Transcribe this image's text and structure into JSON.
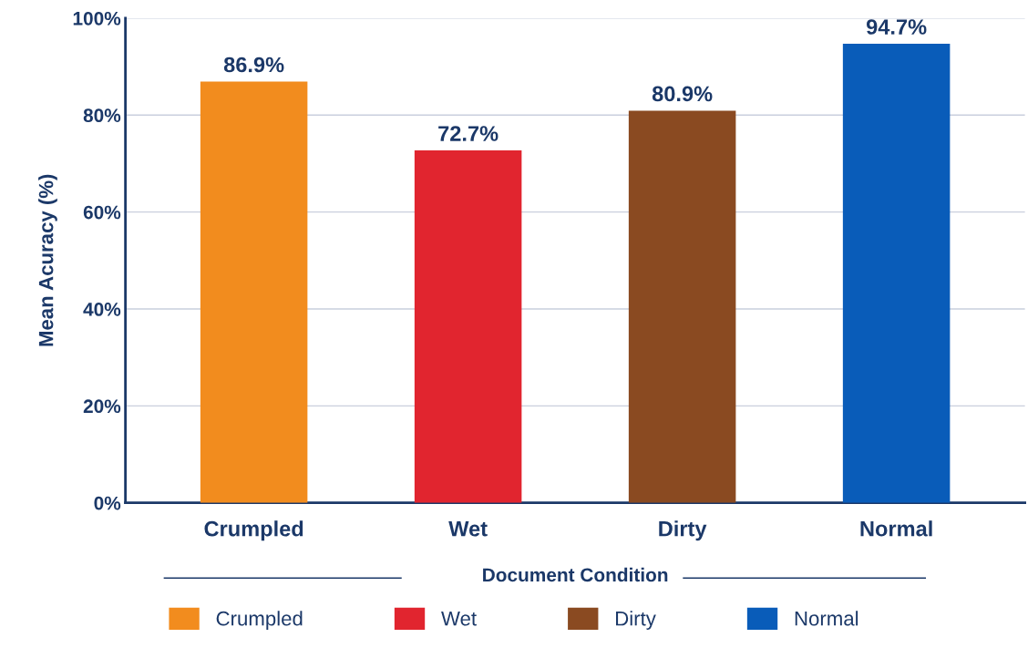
{
  "chart_data": {
    "type": "bar",
    "categories": [
      "Crumpled",
      "Wet",
      "Dirty",
      "Normal"
    ],
    "series": [
      {
        "name": "Crumpled",
        "color": "#f28c1e",
        "values": [
          86.9,
          null,
          null,
          null
        ],
        "value_labels": [
          "86.9%",
          null,
          null,
          null
        ]
      },
      {
        "name": "Wet",
        "color": "#e1252f",
        "values": [
          null,
          72.7,
          null,
          null
        ],
        "value_labels": [
          null,
          "72.7%",
          null,
          null
        ]
      },
      {
        "name": "Dirty",
        "color": "#8a4a21",
        "values": [
          null,
          null,
          80.9,
          null
        ],
        "value_labels": [
          null,
          null,
          "80.9%",
          null
        ]
      },
      {
        "name": "Normal",
        "color": "#095cb9",
        "values": [
          null,
          null,
          null,
          94.7
        ],
        "value_labels": [
          null,
          null,
          null,
          "94.7%"
        ]
      }
    ],
    "xlabel": "Document Condition",
    "ylabel": "Mean Acuracy (%)",
    "ylim": [
      0,
      100
    ],
    "yticks": [
      {
        "value": 0,
        "label": "0%"
      },
      {
        "value": 20,
        "label": "20%"
      },
      {
        "value": 40,
        "label": "40%"
      },
      {
        "value": 60,
        "label": "60%"
      },
      {
        "value": 80,
        "label": "80%"
      },
      {
        "value": 100,
        "label": "100%"
      }
    ],
    "grid": "y",
    "legend": "bottom"
  }
}
